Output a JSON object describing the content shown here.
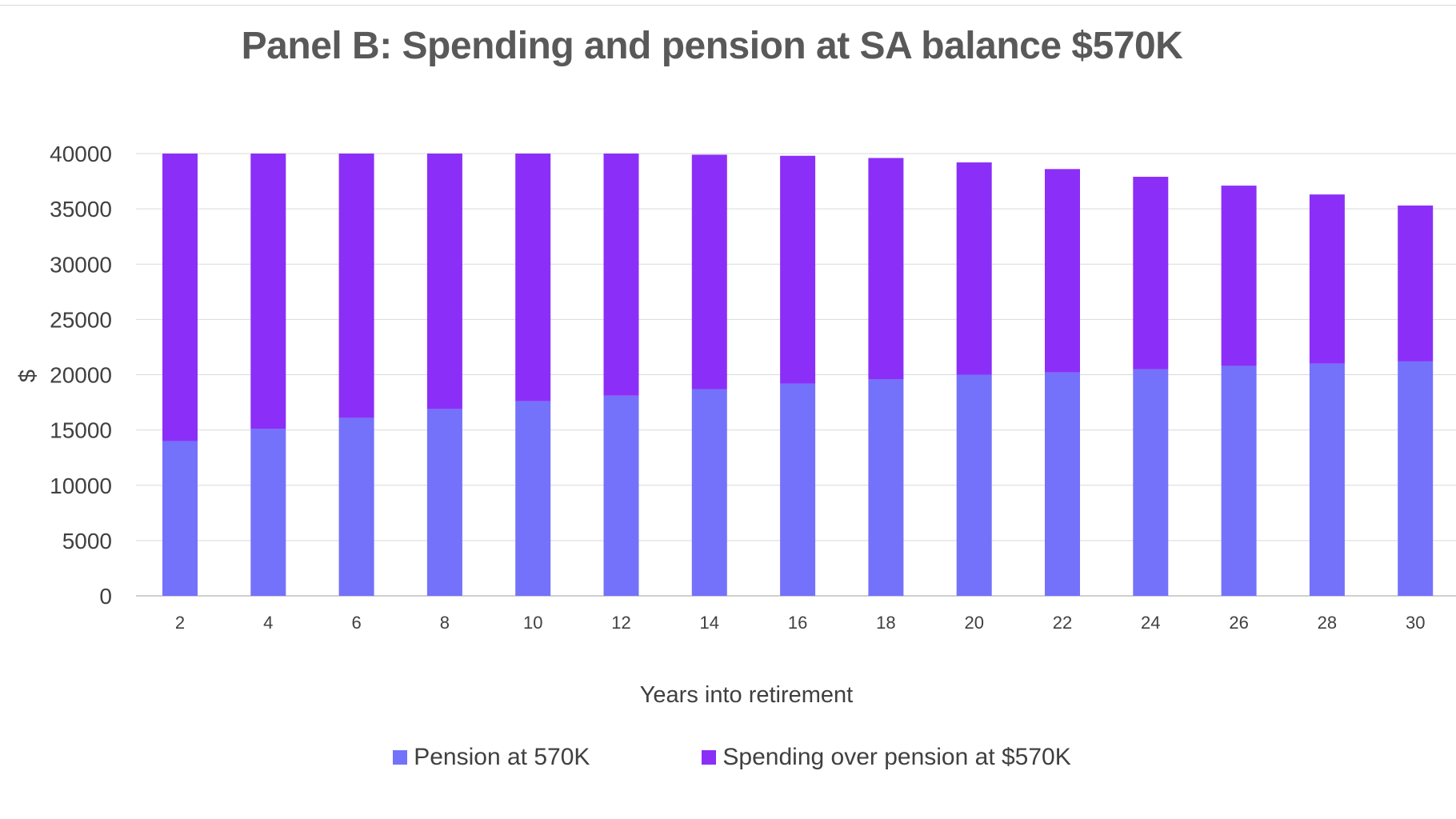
{
  "chart_data": {
    "type": "bar",
    "stacked": true,
    "title": "Panel B: Spending and pension at SA balance $570K",
    "xlabel": "Years into retirement",
    "ylabel": "$",
    "ylim": [
      0,
      40000
    ],
    "yticks": [
      0,
      5000,
      10000,
      15000,
      20000,
      25000,
      30000,
      35000,
      40000
    ],
    "grid": true,
    "legend_position": "bottom",
    "categories": [
      "2",
      "4",
      "6",
      "8",
      "10",
      "12",
      "14",
      "16",
      "18",
      "20",
      "22",
      "24",
      "26",
      "28",
      "30"
    ],
    "series": [
      {
        "name": "Pension at 570K",
        "color": "#7472fa",
        "values": [
          14000,
          15100,
          16100,
          16900,
          17600,
          18100,
          18700,
          19200,
          19600,
          20000,
          20200,
          20500,
          20800,
          21000,
          21200
        ]
      },
      {
        "name": "Spending over pension at $570K",
        "color": "#8b2ff8",
        "values": [
          26000,
          24900,
          23900,
          23100,
          22400,
          21900,
          21200,
          20600,
          20000,
          19200,
          18400,
          17400,
          16300,
          15300,
          14100
        ]
      }
    ]
  }
}
